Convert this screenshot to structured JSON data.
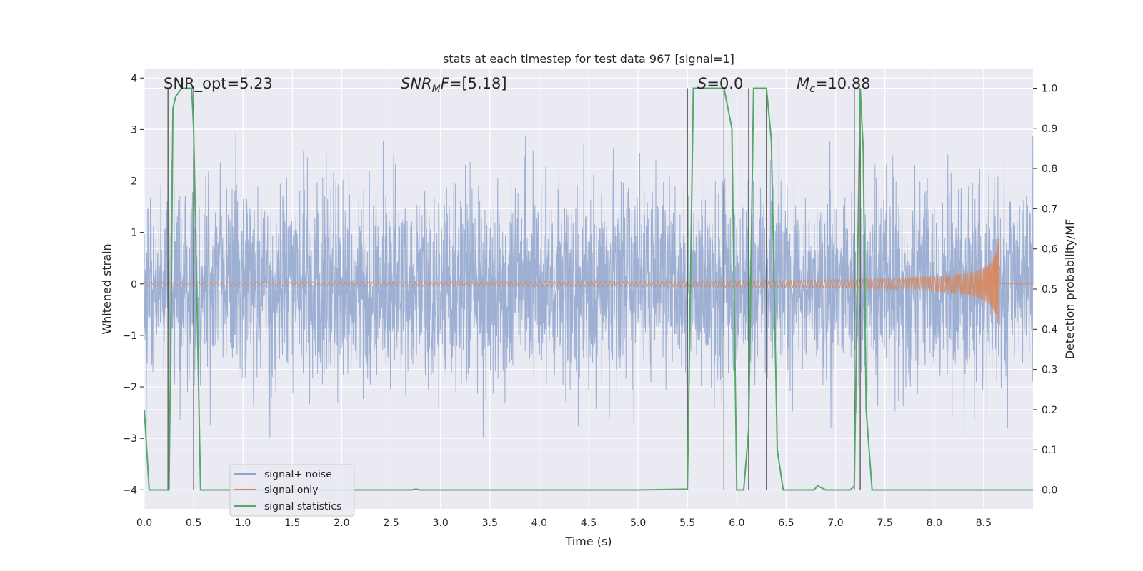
{
  "chart_data": {
    "type": "line",
    "title": "stats at each timestep for test data 967 [signal=1]",
    "xlabel": "Time (s)",
    "ylabel": "Whitened strain",
    "ylabel_right": "Detection probability/MF",
    "xlim": [
      0,
      9
    ],
    "ylim": [
      -4.37,
      4.17
    ],
    "ylim_right": [
      -0.047,
      1.047
    ],
    "x_ticks": [
      "0.0",
      "0.5",
      "1.0",
      "1.5",
      "2.0",
      "2.5",
      "3.0",
      "3.5",
      "4.0",
      "4.5",
      "5.0",
      "5.5",
      "6.0",
      "6.5",
      "7.0",
      "7.5",
      "8.0",
      "8.5"
    ],
    "y_ticks": [
      "4",
      "3",
      "2",
      "1",
      "0",
      "−1",
      "−2",
      "−3",
      "−4"
    ],
    "y_ticks_right": [
      "1.0",
      "0.9",
      "0.8",
      "0.7",
      "0.6",
      "0.5",
      "0.4",
      "0.3",
      "0.2",
      "0.1",
      "0.0"
    ],
    "grid": true,
    "legend_position": "lower-left",
    "annotations": [
      {
        "text": "SNR_opt=5.23",
        "x": 0.2
      },
      {
        "text": "SNR_MF=[5.18]",
        "x": 2.6
      },
      {
        "text": "S=0.0",
        "x": 5.6
      },
      {
        "text": "M_c=10.88",
        "x": 6.6
      }
    ],
    "series": [
      {
        "name": "signal+ noise",
        "color": "#8fa4cc",
        "axis": "left",
        "envelope": "gaussian noise, std ~0.9, spikes to ±3.6"
      },
      {
        "name": "signal only",
        "color": "#dd8452",
        "axis": "left",
        "chirp_end": 8.65,
        "peak_amplitude": 0.95
      },
      {
        "name": "signal statistics",
        "color": "#55a868",
        "axis": "right",
        "x": [
          0.0,
          0.05,
          0.2,
          0.25,
          0.27,
          0.29,
          0.32,
          0.38,
          0.48,
          0.5,
          0.57,
          0.6,
          1.0,
          2.0,
          2.7,
          2.75,
          2.8,
          3.5,
          5.0,
          5.5,
          5.56,
          5.6,
          5.7,
          5.87,
          5.95,
          6.0,
          6.07,
          6.12,
          6.17,
          6.22,
          6.3,
          6.35,
          6.41,
          6.47,
          6.6,
          6.78,
          6.82,
          6.9,
          7.0,
          7.15,
          7.19,
          7.25,
          7.28,
          7.31,
          7.37,
          7.5,
          8.0,
          9.0
        ],
        "values": [
          0.2,
          0.0,
          0.0,
          0.0,
          0.4,
          0.95,
          0.98,
          1.0,
          1.0,
          0.9,
          0.0,
          0.0,
          0.0,
          0.0,
          0.0,
          0.002,
          0.0,
          0.0,
          0.0,
          0.002,
          1.0,
          1.0,
          1.0,
          1.0,
          0.9,
          0.0,
          0.0,
          0.15,
          1.0,
          1.0,
          1.0,
          0.87,
          0.1,
          0.0,
          0.0,
          0.0,
          0.01,
          0.0,
          0.0,
          0.0,
          0.01,
          1.0,
          0.85,
          0.2,
          0.0,
          0.0,
          0.0,
          0.0
        ]
      }
    ],
    "vertical_markers": [
      0.24,
      0.5,
      5.5,
      5.87,
      6.12,
      6.3,
      7.19,
      7.25
    ]
  }
}
